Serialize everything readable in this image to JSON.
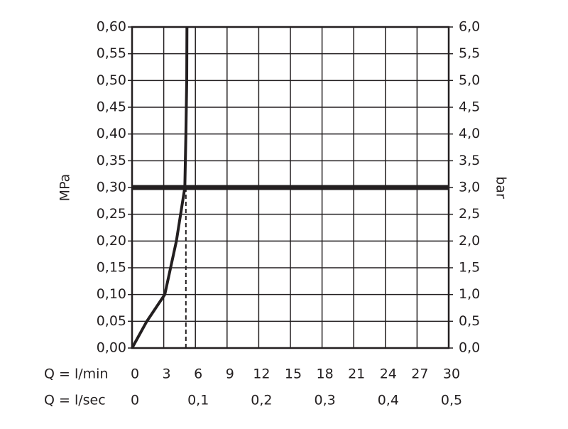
{
  "chart_data": {
    "type": "line",
    "ylabel": "MPa",
    "y2label": "bar",
    "xlabel": "Q = l/min",
    "x2label": "Q = l/sec",
    "xlim": [
      0,
      30
    ],
    "xticks": [
      0,
      3,
      6,
      9,
      12,
      15,
      18,
      21,
      24,
      27,
      30
    ],
    "x2lim": [
      0,
      0.5
    ],
    "x2ticks": [
      0,
      {
        "value": 0.1,
        "label": "0,1"
      },
      {
        "value": 0.2,
        "label": "0,2"
      },
      {
        "value": 0.3,
        "label": "0,3"
      },
      {
        "value": 0.4,
        "label": "0,4"
      },
      {
        "value": 0.5,
        "label": "0,5"
      }
    ],
    "ylim": [
      0,
      0.6
    ],
    "yticks": [
      {
        "value": 0,
        "label": "0,00"
      },
      {
        "value": 0.05,
        "label": "0,05"
      },
      {
        "value": 0.1,
        "label": "0,10"
      },
      {
        "value": 0.15,
        "label": "0,15"
      },
      {
        "value": 0.2,
        "label": "0,20"
      },
      {
        "value": 0.25,
        "label": "0,25"
      },
      {
        "value": 0.3,
        "label": "0,30"
      },
      {
        "value": 0.35,
        "label": "0,35"
      },
      {
        "value": 0.4,
        "label": "0,40"
      },
      {
        "value": 0.45,
        "label": "0,45"
      },
      {
        "value": 0.5,
        "label": "0,50"
      },
      {
        "value": 0.55,
        "label": "0,55"
      },
      {
        "value": 0.6,
        "label": "0,60"
      }
    ],
    "y2lim": [
      0,
      6
    ],
    "y2ticks": [
      {
        "value": 0,
        "label": "0,0"
      },
      {
        "value": 0.5,
        "label": "0,5"
      },
      {
        "value": 1,
        "label": "1,0"
      },
      {
        "value": 1.5,
        "label": "1,5"
      },
      {
        "value": 2,
        "label": "2,0"
      },
      {
        "value": 2.5,
        "label": "2,5"
      },
      {
        "value": 3,
        "label": "3,0"
      },
      {
        "value": 3.5,
        "label": "3,5"
      },
      {
        "value": 4,
        "label": "4,0"
      },
      {
        "value": 4.5,
        "label": "4,5"
      },
      {
        "value": 5,
        "label": "5,0"
      },
      {
        "value": 5.5,
        "label": "5,5"
      },
      {
        "value": 6,
        "label": "6,0"
      }
    ],
    "grid": true,
    "series": [
      {
        "color": "#231f20",
        "x": [
          0,
          1.4,
          3.1,
          4.2,
          5.0,
          5.1,
          5.18,
          5.2
        ],
        "values": [
          0,
          0.05,
          0.1,
          0.2,
          0.3,
          0.4,
          0.5,
          0.6
        ]
      }
    ],
    "threshold": {
      "y": 0.3,
      "x": 5.1,
      "color": "#231f20"
    }
  }
}
